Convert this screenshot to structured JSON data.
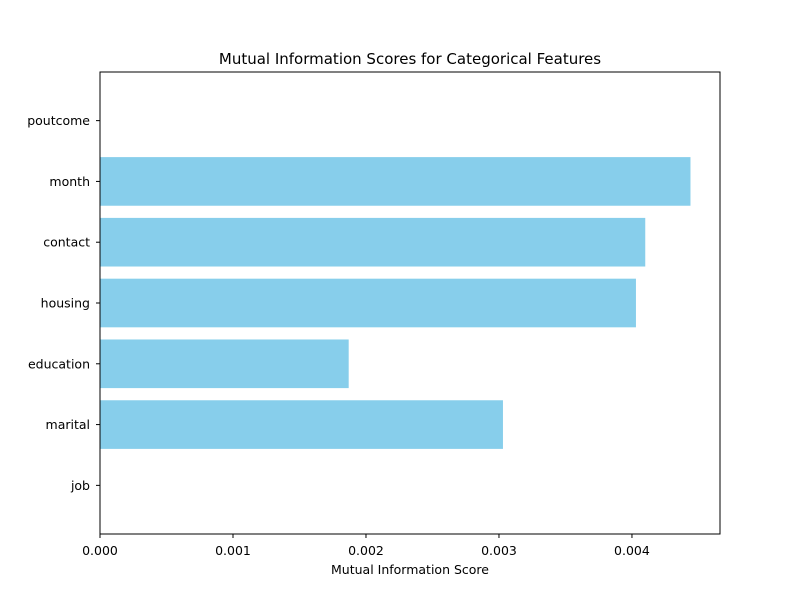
{
  "chart_data": {
    "type": "bar",
    "orientation": "horizontal",
    "title": "Mutual Information Scores for Categorical Features",
    "xlabel": "Mutual Information Score",
    "ylabel": "",
    "categories": [
      "job",
      "marital",
      "education",
      "housing",
      "contact",
      "month",
      "poutcome"
    ],
    "values": [
      0.0,
      0.00303,
      0.00187,
      0.00403,
      0.0041,
      0.00444,
      0.0
    ],
    "xlim": [
      0.0,
      0.004662
    ],
    "xticks": [
      "0.000",
      "0.001",
      "0.002",
      "0.003",
      "0.004"
    ],
    "grid": false,
    "bar_color": "#87CEEB"
  }
}
